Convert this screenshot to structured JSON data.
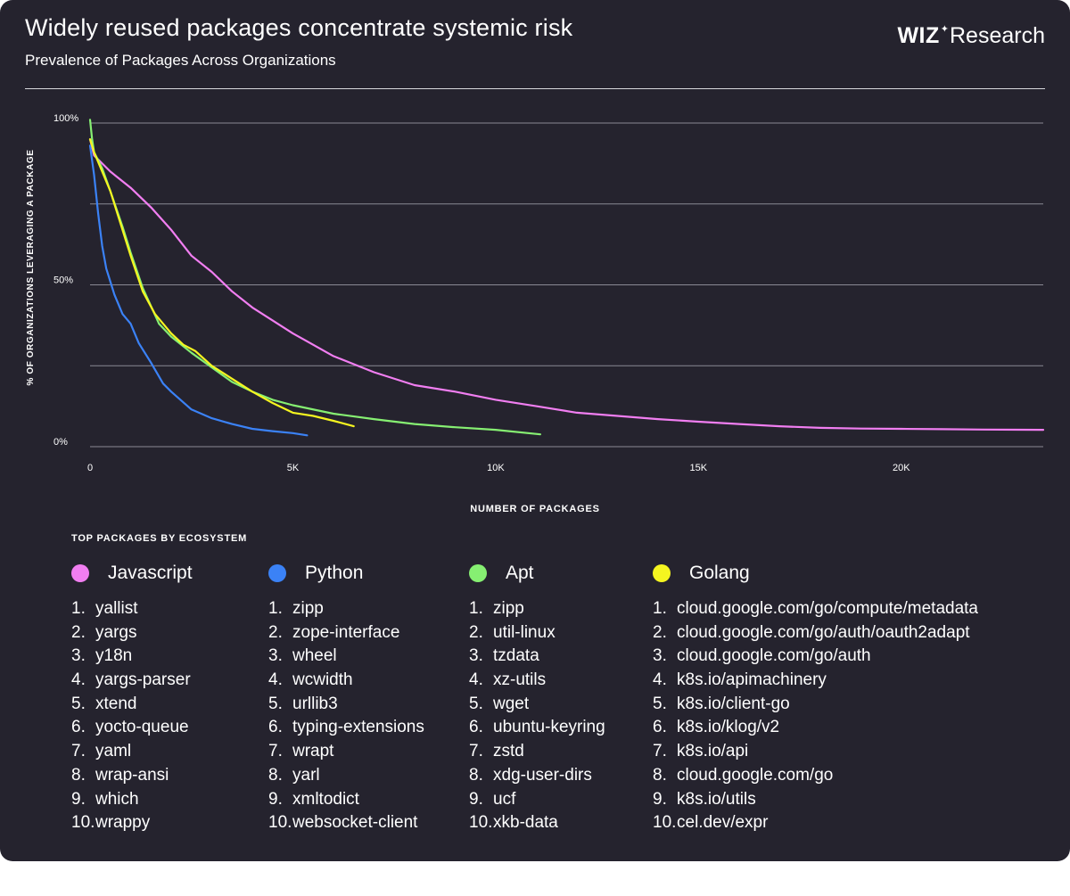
{
  "header": {
    "title": "Widely reused packages concentrate systemic risk",
    "subtitle": "Prevalence of Packages Across Organizations",
    "logo_wiz": "WIZ",
    "logo_star": "✦",
    "logo_research": "Research"
  },
  "chart_data": {
    "type": "line",
    "xlabel": "NUMBER OF PACKAGES",
    "ylabel": "% OF ORGANIZATIONS LEVERAGING A PACKAGE",
    "xlim": [
      0,
      23500
    ],
    "ylim": [
      0,
      100
    ],
    "x_ticks": [
      {
        "value": 0,
        "label": "0"
      },
      {
        "value": 5000,
        "label": "5K"
      },
      {
        "value": 10000,
        "label": "10K"
      },
      {
        "value": 15000,
        "label": "15K"
      },
      {
        "value": 20000,
        "label": "20K"
      }
    ],
    "y_ticks": [
      {
        "value": 100,
        "label": "100%"
      },
      {
        "value": 50,
        "label": "50%"
      },
      {
        "value": 0,
        "label": "0%"
      }
    ],
    "y_gridlines": [
      0,
      25,
      50,
      75,
      100
    ],
    "grid": true,
    "legend_placement": "bottom",
    "series": [
      {
        "name": "Javascript",
        "color": "#f17ef1",
        "x": [
          0,
          100,
          500,
          1000,
          1500,
          2000,
          2500,
          3000,
          3500,
          4000,
          5000,
          6000,
          7000,
          8000,
          9000,
          10000,
          11000,
          12000,
          13000,
          14000,
          15000,
          16000,
          17000,
          18000,
          19000,
          20000,
          21000,
          22000,
          23500
        ],
        "y": [
          95,
          90,
          85,
          80,
          74,
          67,
          59,
          54,
          48,
          43,
          35,
          28,
          23,
          19,
          17,
          14.5,
          12.5,
          10.5,
          9.5,
          8.5,
          7.7,
          7,
          6.3,
          5.8,
          5.6,
          5.5,
          5.4,
          5.3,
          5.2
        ]
      },
      {
        "name": "Python",
        "color": "#3b82f6",
        "x": [
          0,
          100,
          200,
          300,
          400,
          600,
          800,
          1000,
          1200,
          1500,
          1800,
          2000,
          2500,
          3000,
          3500,
          4000,
          4500,
          5000,
          5350
        ],
        "y": [
          93,
          84,
          72,
          62,
          55,
          47,
          41,
          38,
          32,
          26,
          19.5,
          17,
          11.5,
          8.8,
          7,
          5.5,
          4.8,
          4.2,
          3.5
        ]
      },
      {
        "name": "Apt",
        "color": "#86ef72",
        "x": [
          0,
          50,
          100,
          300,
          500,
          800,
          1000,
          1300,
          1700,
          2000,
          2500,
          3000,
          3500,
          4000,
          4500,
          5000,
          6000,
          7000,
          8000,
          9000,
          10000,
          11100
        ],
        "y": [
          101,
          95,
          91,
          86,
          79,
          68,
          60,
          49,
          38,
          34,
          29,
          24.5,
          20,
          17,
          14.5,
          12.8,
          10.2,
          8.5,
          7,
          6,
          5.2,
          3.8
        ]
      },
      {
        "name": "Golang",
        "color": "#f5f520",
        "x": [
          0,
          100,
          300,
          500,
          800,
          1000,
          1300,
          1600,
          2000,
          2300,
          2600,
          3000,
          3500,
          4000,
          4500,
          5000,
          5500,
          6000,
          6500
        ],
        "y": [
          95,
          91,
          85,
          79,
          67,
          59,
          48,
          41,
          35,
          31.5,
          29.5,
          25,
          21,
          17,
          13.5,
          10.5,
          9.5,
          8,
          6.3
        ]
      }
    ]
  },
  "legend": {
    "title": "TOP PACKAGES BY ECOSYSTEM",
    "columns": [
      {
        "name": "Javascript",
        "color": "#f17ef1",
        "items": [
          {
            "num": "1.",
            "text": "yallist"
          },
          {
            "num": "2.",
            "text": "yargs"
          },
          {
            "num": "3.",
            "text": "y18n"
          },
          {
            "num": "4.",
            "text": "yargs-parser"
          },
          {
            "num": "5.",
            "text": "xtend"
          },
          {
            "num": "6.",
            "text": "yocto-queue"
          },
          {
            "num": "7.",
            "text": "yaml"
          },
          {
            "num": "8.",
            "text": "wrap-ansi"
          },
          {
            "num": "9.",
            "text": "which"
          },
          {
            "num": "10.",
            "text": "wrappy"
          }
        ]
      },
      {
        "name": "Python",
        "color": "#3b82f6",
        "items": [
          {
            "num": "1.",
            "text": "zipp"
          },
          {
            "num": "2.",
            "text": "zope-interface"
          },
          {
            "num": "3.",
            "text": "wheel"
          },
          {
            "num": "4.",
            "text": "wcwidth"
          },
          {
            "num": "5.",
            "text": "urllib3"
          },
          {
            "num": "6.",
            "text": "typing-extensions"
          },
          {
            "num": "7.",
            "text": "wrapt"
          },
          {
            "num": "8.",
            "text": "yarl"
          },
          {
            "num": "9.",
            "text": "xmltodict"
          },
          {
            "num": "10.",
            "text": "websocket-client"
          }
        ]
      },
      {
        "name": "Apt",
        "color": "#86ef72",
        "items": [
          {
            "num": "1.",
            "text": "zipp"
          },
          {
            "num": "2.",
            "text": "util-linux"
          },
          {
            "num": "3.",
            "text": "tzdata"
          },
          {
            "num": "4.",
            "text": "xz-utils"
          },
          {
            "num": "5.",
            "text": "wget"
          },
          {
            "num": "6.",
            "text": "ubuntu-keyring"
          },
          {
            "num": "7.",
            "text": "zstd"
          },
          {
            "num": "8.",
            "text": "xdg-user-dirs"
          },
          {
            "num": "9.",
            "text": "ucf"
          },
          {
            "num": "10.",
            "text": "xkb-data"
          }
        ]
      },
      {
        "name": "Golang",
        "color": "#f5f520",
        "items": [
          {
            "num": "1.",
            "text": "cloud.google.com/go/compute/metadata"
          },
          {
            "num": "2.",
            "text": "cloud.google.com/go/auth/oauth2adapt"
          },
          {
            "num": "3.",
            "text": "cloud.google.com/go/auth"
          },
          {
            "num": "4.",
            "text": "k8s.io/apimachinery"
          },
          {
            "num": "5.",
            "text": "k8s.io/client-go"
          },
          {
            "num": "6.",
            "text": "k8s.io/klog/v2"
          },
          {
            "num": "7.",
            "text": "k8s.io/api"
          },
          {
            "num": "8.",
            "text": "cloud.google.com/go"
          },
          {
            "num": "9.",
            "text": "k8s.io/utils"
          },
          {
            "num": "10.",
            "text": "cel.dev/expr"
          }
        ]
      }
    ]
  }
}
